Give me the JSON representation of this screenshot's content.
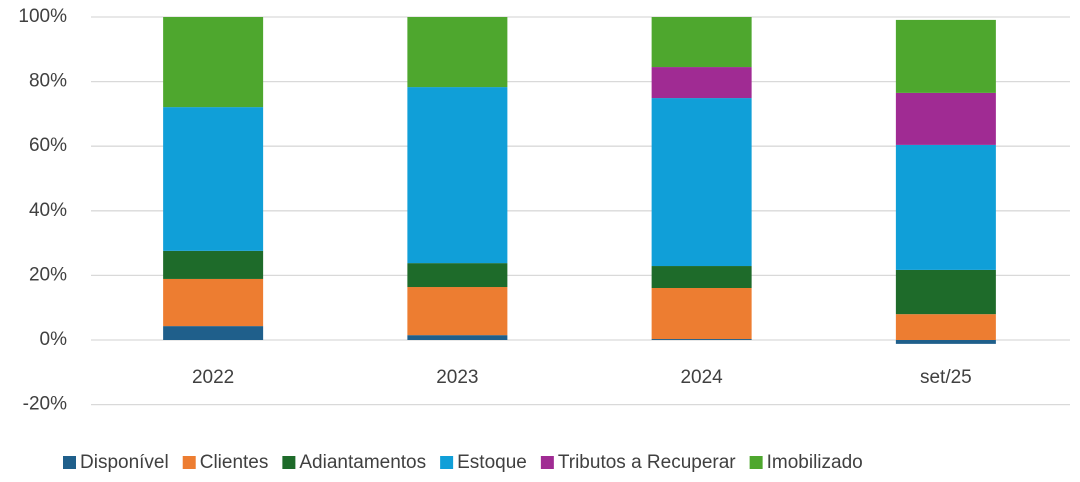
{
  "chart_data": {
    "type": "stacked_bar",
    "categories": [
      "2022",
      "2023",
      "2024",
      "set/25"
    ],
    "series": [
      {
        "name": "Disponível",
        "color": "#1f5f8b",
        "values": [
          4.3,
          1.5,
          0.3,
          -1.2
        ]
      },
      {
        "name": "Clientes",
        "color": "#ed7d31",
        "values": [
          14.6,
          14.9,
          15.8,
          8.0
        ]
      },
      {
        "name": "Adiantamentos",
        "color": "#1e6b2a",
        "values": [
          8.7,
          7.4,
          6.8,
          13.7
        ]
      },
      {
        "name": "Estoque",
        "color": "#109fd8",
        "values": [
          44.5,
          54.5,
          52.0,
          38.7
        ]
      },
      {
        "name": "Tributos a Recuperar",
        "color": "#a02b93",
        "values": [
          0,
          0,
          9.6,
          16.1
        ]
      },
      {
        "name": "Imobilizado",
        "color": "#4ea72e",
        "values": [
          27.9,
          21.7,
          15.5,
          22.6
        ]
      }
    ],
    "ylim": [
      -20,
      100
    ],
    "yticks": [
      {
        "value": -20,
        "label": "-20%"
      },
      {
        "value": 0,
        "label": "0%"
      },
      {
        "value": 20,
        "label": "20%"
      },
      {
        "value": 40,
        "label": "40%"
      },
      {
        "value": 60,
        "label": "60%"
      },
      {
        "value": 80,
        "label": "80%"
      },
      {
        "value": 100,
        "label": "100%"
      }
    ],
    "grid": true,
    "legend": "bottom"
  }
}
